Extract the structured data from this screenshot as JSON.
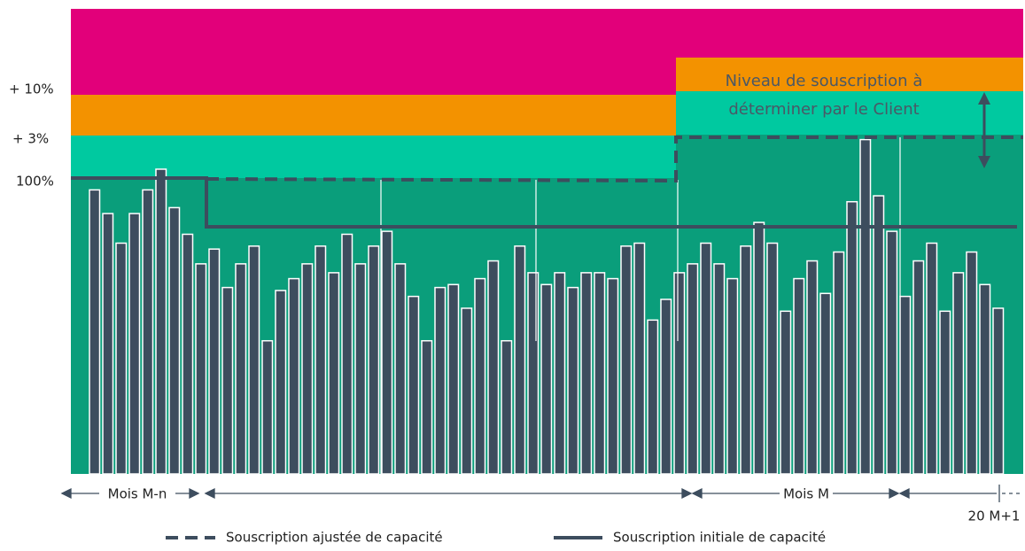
{
  "levels": [
    "+ 10%",
    "+ 3%",
    "100%"
  ],
  "annotation": [
    "Niveau de souscription à",
    "déterminer par le Client"
  ],
  "periods": [
    "Mois M-n",
    "Mois M",
    "20 M+1"
  ],
  "legend": [
    "Souscription ajustée de capacité",
    "Souscription initiale de capacité"
  ],
  "bars": [
    96,
    88,
    78,
    88,
    96,
    103,
    90,
    81,
    71,
    76,
    63,
    71,
    77,
    45,
    62,
    66,
    71,
    77,
    68,
    81,
    71,
    77,
    82,
    71,
    60,
    45,
    63,
    64,
    56,
    66,
    72,
    45,
    77,
    68,
    64,
    68,
    63,
    68,
    68,
    66,
    77,
    78,
    52,
    59,
    68,
    71,
    78,
    71,
    66,
    77,
    85,
    78,
    55,
    66,
    72,
    61,
    75,
    92,
    113,
    94,
    82,
    60,
    72,
    78,
    55,
    68,
    75,
    64,
    56
  ]
}
